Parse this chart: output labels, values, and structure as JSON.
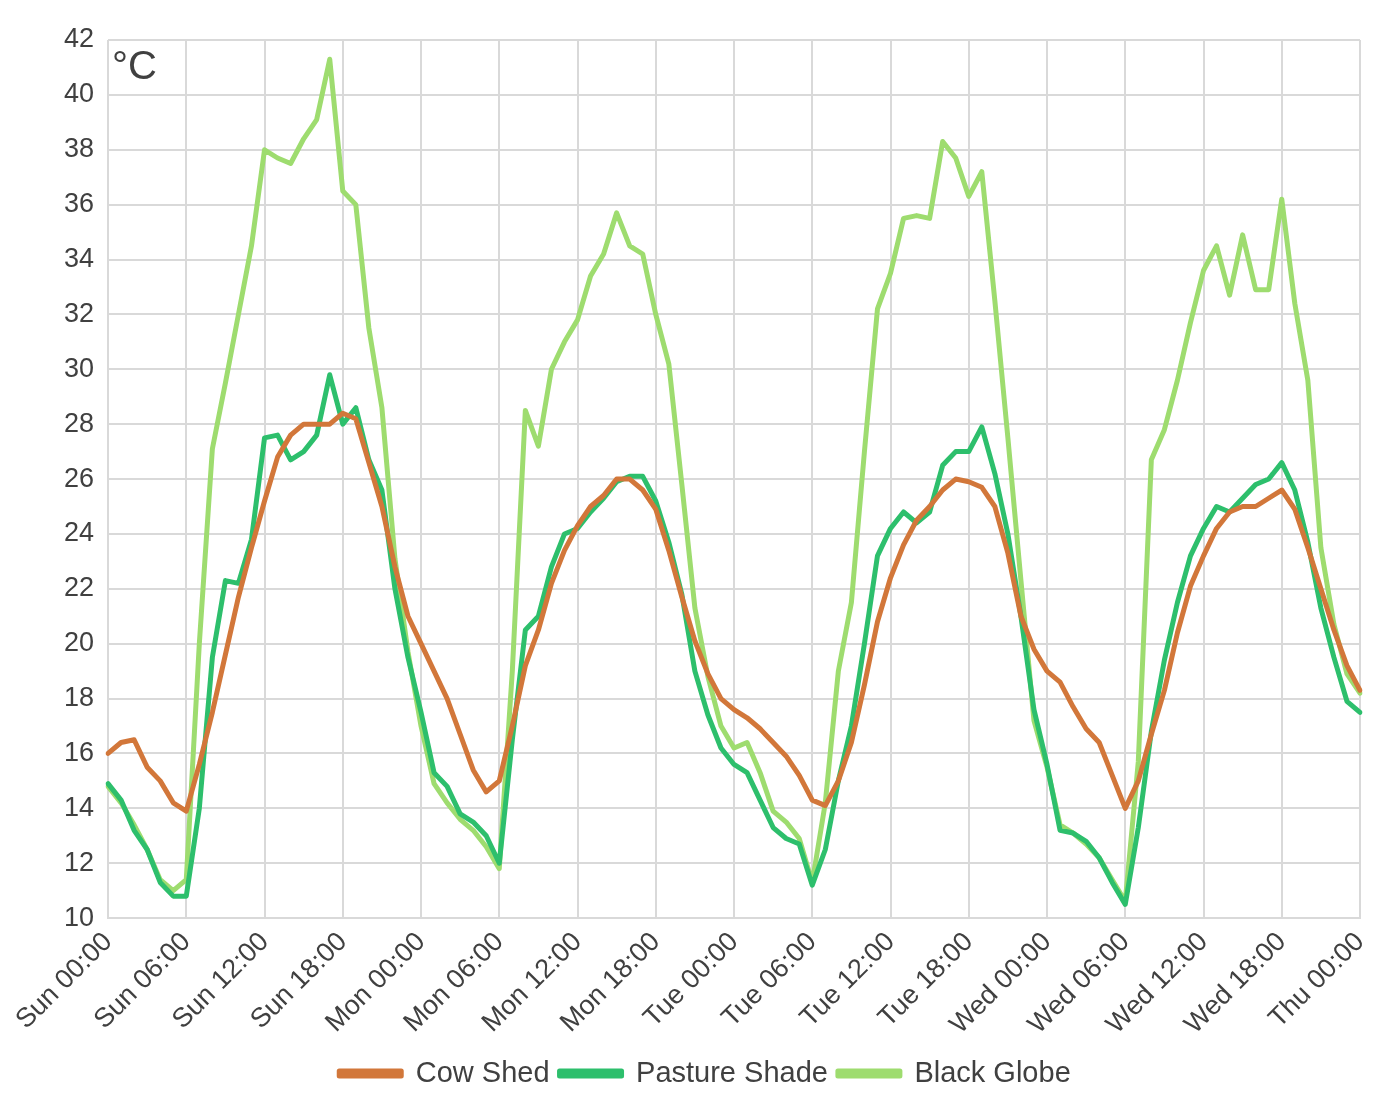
{
  "chart_data": {
    "type": "line",
    "ylabel": "°C",
    "categories": [
      "Sun 00:00",
      null,
      null,
      null,
      null,
      null,
      "Sun 06:00",
      null,
      null,
      null,
      null,
      null,
      "Sun 12:00",
      null,
      null,
      null,
      null,
      null,
      "Sun 18:00",
      null,
      null,
      null,
      null,
      null,
      "Mon 00:00",
      null,
      null,
      null,
      null,
      null,
      "Mon 06:00",
      null,
      null,
      null,
      null,
      null,
      "Mon 12:00",
      null,
      null,
      null,
      null,
      null,
      "Mon 18:00",
      null,
      null,
      null,
      null,
      null,
      "Tue 00:00",
      null,
      null,
      null,
      null,
      null,
      "Tue 06:00",
      null,
      null,
      null,
      null,
      null,
      "Tue 12:00",
      null,
      null,
      null,
      null,
      null,
      "Tue 18:00",
      null,
      null,
      null,
      null,
      null,
      "Wed 00:00",
      null,
      null,
      null,
      null,
      null,
      "Wed 06:00",
      null,
      null,
      null,
      null,
      null,
      "Wed 12:00",
      null,
      null,
      null,
      null,
      null,
      "Wed 18:00",
      null,
      null,
      null,
      null,
      null,
      "Thu 00:00"
    ],
    "ylim": [
      10,
      42
    ],
    "yticks": [
      10,
      12,
      14,
      16,
      18,
      20,
      22,
      24,
      26,
      28,
      30,
      32,
      34,
      36,
      38,
      40,
      42
    ],
    "grid": true,
    "legend": "bottom",
    "marker": "none",
    "line_style": "solid",
    "series": [
      {
        "name": "Cow Shed",
        "color": "#d2773a",
        "values": [
          16,
          16.4,
          16.5,
          15.5,
          15,
          14.2,
          13.9,
          15.6,
          17.5,
          19.6,
          21.7,
          23.5,
          25.2,
          26.8,
          27.6,
          28,
          28,
          28,
          28.4,
          28.2,
          26.6,
          25,
          22.8,
          21,
          20,
          19,
          18,
          16.7,
          15.4,
          14.6,
          15,
          17,
          19.2,
          20.5,
          22.2,
          23.4,
          24.3,
          25,
          25.4,
          26,
          26,
          25.6,
          24.9,
          23.4,
          21.7,
          20.1,
          18.9,
          18,
          17.6,
          17.3,
          16.9,
          16.4,
          15.9,
          15.2,
          14.3,
          14.1,
          15,
          16.4,
          18.5,
          20.8,
          22.4,
          23.6,
          24.5,
          25,
          25.6,
          26,
          25.9,
          25.7,
          25,
          23.3,
          21,
          19.8,
          19,
          18.6,
          17.7,
          16.9,
          16.4,
          15.2,
          14,
          15,
          16.7,
          18.3,
          20.4,
          22.1,
          23.2,
          24.2,
          24.8,
          25,
          25,
          25.3,
          25.6,
          24.9,
          23.5,
          22,
          20.5,
          19.2,
          18.3
        ]
      },
      {
        "name": "Pasture Shade",
        "color": "#2dbf6c",
        "values": [
          14.9,
          14.3,
          13.2,
          12.5,
          11.3,
          10.8,
          10.8,
          14,
          19.5,
          22.3,
          22.2,
          23.8,
          27.5,
          27.6,
          26.7,
          27,
          27.6,
          29.8,
          28,
          28.6,
          26.7,
          25.6,
          22,
          19.5,
          17.5,
          15.3,
          14.8,
          13.8,
          13.5,
          13,
          12,
          16.5,
          20.5,
          21,
          22.8,
          24,
          24.2,
          24.8,
          25.3,
          25.9,
          26.1,
          26.1,
          25.2,
          23.7,
          21.8,
          19,
          17.4,
          16.2,
          15.6,
          15.3,
          14.3,
          13.3,
          12.9,
          12.7,
          11.2,
          12.5,
          15,
          17,
          20,
          23.2,
          24.2,
          24.8,
          24.4,
          24.8,
          26.5,
          27,
          27,
          27.9,
          26.2,
          24,
          21,
          17.6,
          15.6,
          13.2,
          13.1,
          12.8,
          12.2,
          11.3,
          10.5,
          13.3,
          16.8,
          19.4,
          21.5,
          23.2,
          24.2,
          25,
          24.8,
          25.3,
          25.8,
          26,
          26.6,
          25.6,
          23.7,
          21.3,
          19.5,
          17.9,
          17.5
        ]
      },
      {
        "name": "Black Globe",
        "color": "#9edc6f",
        "values": [
          14.8,
          14.2,
          13.4,
          12.5,
          11.4,
          11,
          11.4,
          20,
          27.1,
          29.5,
          32,
          34.5,
          38,
          37.7,
          37.5,
          38.4,
          39.1,
          41.3,
          36.5,
          36,
          31.5,
          28.6,
          23.1,
          19.7,
          17,
          14.9,
          14.2,
          13.6,
          13.2,
          12.6,
          11.8,
          19,
          28.5,
          27.2,
          30,
          31,
          31.8,
          33.4,
          34.2,
          35.7,
          34.5,
          34.2,
          32,
          30.2,
          25.8,
          21.3,
          18.8,
          17,
          16.2,
          16.4,
          15.3,
          13.9,
          13.5,
          12.9,
          11.3,
          14.2,
          19,
          21.5,
          27,
          32.2,
          33.5,
          35.5,
          35.6,
          35.5,
          38.3,
          37.7,
          36.3,
          37.2,
          32.5,
          27.5,
          22.3,
          17.2,
          15.5,
          13.4,
          13.1,
          12.7,
          12.2,
          11.4,
          10.6,
          15.7,
          26.7,
          27.8,
          29.6,
          31.7,
          33.6,
          34.5,
          32.7,
          34.9,
          32.9,
          32.9,
          36.2,
          32.4,
          29.6,
          23.5,
          20.7,
          18.9,
          18.2
        ]
      }
    ]
  }
}
